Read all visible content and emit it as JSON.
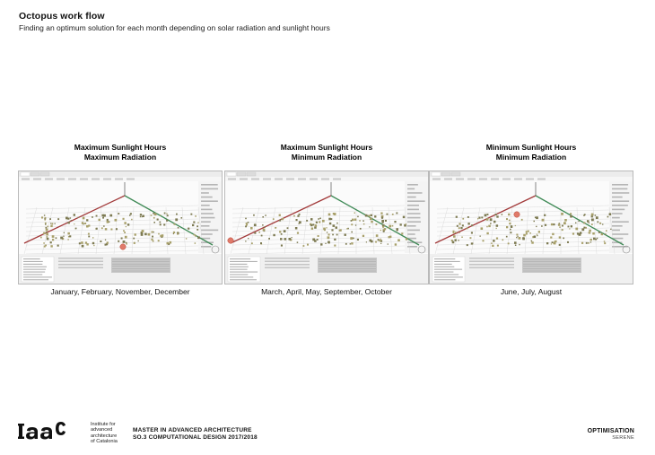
{
  "header": {
    "title": "Octopus work flow",
    "subtitle": "Finding an optimum solution for each month depending on solar radiation and sunlight hours"
  },
  "panels": [
    {
      "heading_line1": "Maximum Sunlight Hours",
      "heading_line2": "Maximum Radiation",
      "months": "January,  February, November, December"
    },
    {
      "heading_line1": "Maximum Sunlight Hours",
      "heading_line2": "Minimum Radiation",
      "months": "March, April, May, September, October"
    },
    {
      "heading_line1": "Minimum Sunlight Hours",
      "heading_line2": "Minimum Radiation",
      "months": "June, July, August"
    }
  ],
  "footer": {
    "logo_lines": [
      "Institute for",
      "advanced",
      "architecture",
      "of Catalonia"
    ],
    "course_line1": "MASTER IN ADVANCED ARCHITECTURE",
    "course_line2": "SO.3 COMPUTATIONAL DESIGN 2017/2018",
    "section_title": "OPTIMISATION",
    "section_sub": "SERENE"
  },
  "colors": {
    "axis_red": "#a23a3a",
    "axis_green": "#3f8a56",
    "highlight": "#e07a6a",
    "point": "#a8a06a"
  }
}
